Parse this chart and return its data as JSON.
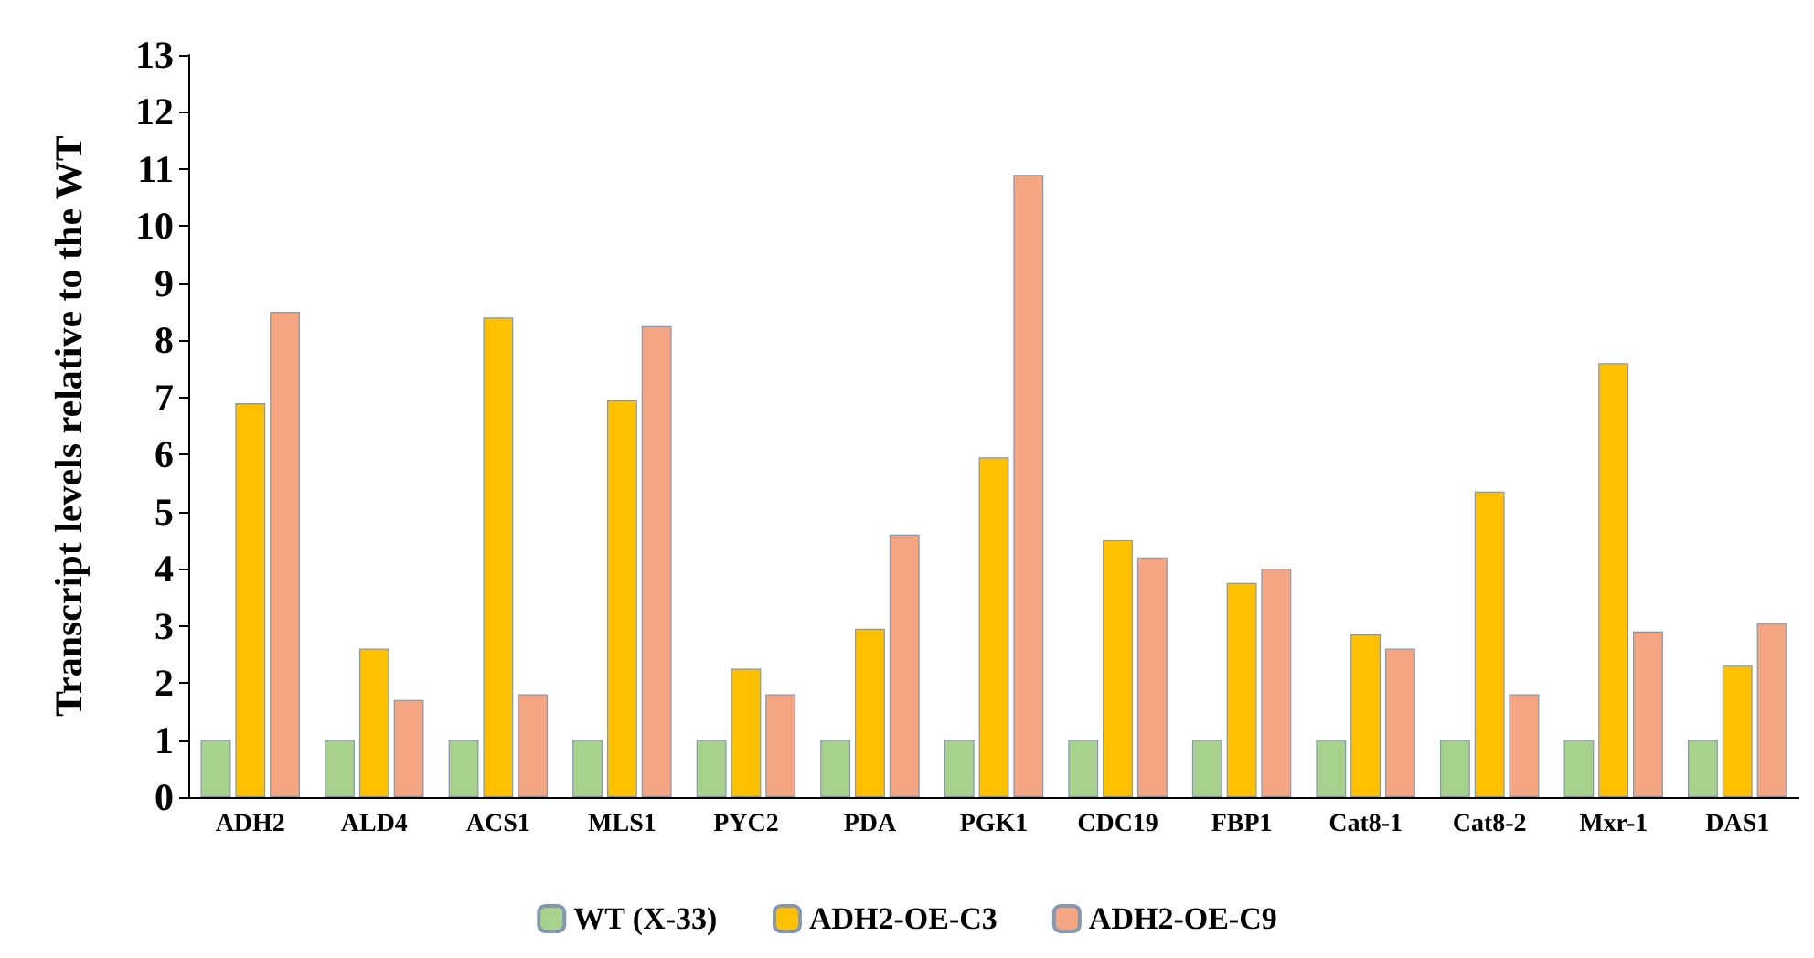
{
  "chart_data": {
    "type": "bar",
    "ylabel": "Transcript levels relative to the WT",
    "categories": [
      "ADH2",
      "ALD4",
      "ACS1",
      "MLS1",
      "PYC2",
      "PDA",
      "PGK1",
      "CDC19",
      "FBP1",
      "Cat8-1",
      "Cat8-2",
      "Mxr-1",
      "DAS1"
    ],
    "series": [
      {
        "name": "WT (X-33)",
        "color": "#a9d18e",
        "values": [
          1,
          1,
          1,
          1,
          1,
          1,
          1,
          1,
          1,
          1,
          1,
          1,
          1
        ]
      },
      {
        "name": "ADH2-OE-C3",
        "color": "#ffc000",
        "values": [
          6.9,
          2.6,
          8.4,
          6.95,
          2.25,
          2.95,
          5.95,
          4.5,
          3.75,
          2.85,
          5.35,
          7.6,
          2.3
        ]
      },
      {
        "name": "ADH2-OE-C9",
        "color": "#f4a582",
        "values": [
          8.5,
          1.7,
          1.8,
          8.25,
          1.8,
          4.6,
          10.9,
          4.2,
          4.0,
          2.6,
          1.8,
          2.9,
          3.05
        ]
      }
    ],
    "ylim": [
      0,
      13
    ],
    "yticks": [
      0,
      1,
      2,
      3,
      4,
      5,
      6,
      7,
      8,
      9,
      10,
      11,
      12,
      13
    ],
    "grid": false,
    "legend": "bottom"
  }
}
